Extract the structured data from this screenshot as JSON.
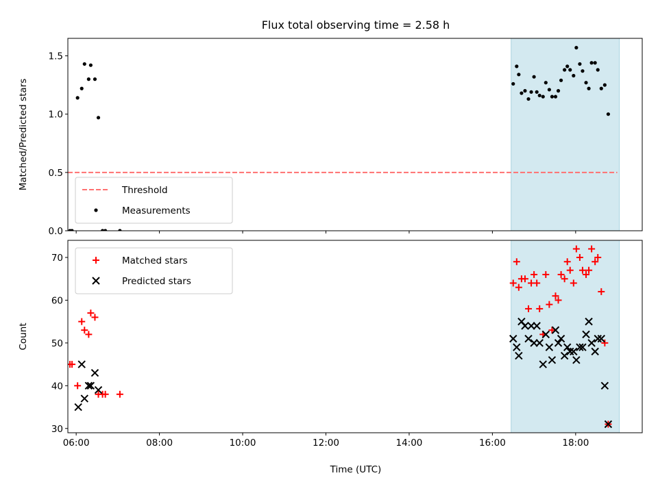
{
  "title": "Flux total observing time = 2.58 h",
  "xlabel": "Time (UTC)",
  "chart_data": [
    {
      "type": "scatter",
      "panel": "top",
      "ylabel": "Matched/Predicted stars",
      "xlim": [
        "05:48",
        "19:36"
      ],
      "ylim": [
        0,
        1.65
      ],
      "yticks": [
        "0.0",
        "0.5",
        "1.0",
        "1.5"
      ],
      "xticks": [
        "06:00",
        "08:00",
        "10:00",
        "12:00",
        "14:00",
        "16:00",
        "18:00"
      ],
      "shaded_region": {
        "x": [
          "16:27",
          "19:03"
        ],
        "color": "#d3e9f0"
      },
      "legend_position": "lower-left",
      "series": [
        {
          "name": "Threshold",
          "style": "dashed-line",
          "color": "#ff7070",
          "points": [
            [
              "05:48",
              0.5
            ],
            [
              "19:00",
              0.5
            ]
          ]
        },
        {
          "name": "Measurements",
          "style": "dot",
          "color": "#000000",
          "points": [
            [
              "05:51",
              0.0
            ],
            [
              "05:54",
              0.0
            ],
            [
              "06:02",
              1.14
            ],
            [
              "06:08",
              1.22
            ],
            [
              "06:12",
              1.43
            ],
            [
              "06:18",
              1.3
            ],
            [
              "06:21",
              1.42
            ],
            [
              "06:27",
              1.3
            ],
            [
              "06:32",
              0.97
            ],
            [
              "06:38",
              0.0
            ],
            [
              "06:42",
              0.0
            ],
            [
              "07:03",
              0.0
            ],
            [
              "16:30",
              1.26
            ],
            [
              "16:35",
              1.41
            ],
            [
              "16:38",
              1.34
            ],
            [
              "16:42",
              1.18
            ],
            [
              "16:47",
              1.2
            ],
            [
              "16:52",
              1.13
            ],
            [
              "16:56",
              1.19
            ],
            [
              "17:00",
              1.32
            ],
            [
              "17:04",
              1.19
            ],
            [
              "17:08",
              1.16
            ],
            [
              "17:13",
              1.15
            ],
            [
              "17:17",
              1.27
            ],
            [
              "17:22",
              1.21
            ],
            [
              "17:26",
              1.15
            ],
            [
              "17:31",
              1.15
            ],
            [
              "17:35",
              1.2
            ],
            [
              "17:39",
              1.29
            ],
            [
              "17:44",
              1.38
            ],
            [
              "17:48",
              1.41
            ],
            [
              "17:52",
              1.38
            ],
            [
              "17:57",
              1.33
            ],
            [
              "18:01",
              1.57
            ],
            [
              "18:06",
              1.43
            ],
            [
              "18:10",
              1.37
            ],
            [
              "18:15",
              1.27
            ],
            [
              "18:19",
              1.22
            ],
            [
              "18:23",
              1.44
            ],
            [
              "18:28",
              1.44
            ],
            [
              "18:32",
              1.38
            ],
            [
              "18:37",
              1.22
            ],
            [
              "18:42",
              1.25
            ],
            [
              "18:47",
              1.0
            ]
          ]
        }
      ]
    },
    {
      "type": "scatter",
      "panel": "bottom",
      "ylabel": "Count",
      "xlim": [
        "05:48",
        "19:36"
      ],
      "ylim": [
        29,
        74
      ],
      "yticks": [
        "30",
        "40",
        "50",
        "60",
        "70"
      ],
      "xticks": [
        "06:00",
        "08:00",
        "10:00",
        "12:00",
        "14:00",
        "16:00",
        "18:00"
      ],
      "shaded_region": {
        "x": [
          "16:27",
          "19:03"
        ],
        "color": "#d3e9f0"
      },
      "legend_position": "upper-left",
      "series": [
        {
          "name": "Matched stars",
          "marker": "plus",
          "color": "#ff0000",
          "points": [
            [
              "05:51",
              45
            ],
            [
              "05:54",
              45
            ],
            [
              "06:02",
              40
            ],
            [
              "06:08",
              55
            ],
            [
              "06:12",
              53
            ],
            [
              "06:18",
              52
            ],
            [
              "06:21",
              57
            ],
            [
              "06:27",
              56
            ],
            [
              "06:32",
              38
            ],
            [
              "06:38",
              38
            ],
            [
              "06:42",
              38
            ],
            [
              "07:03",
              38
            ],
            [
              "16:30",
              64
            ],
            [
              "16:35",
              69
            ],
            [
              "16:38",
              63
            ],
            [
              "16:42",
              65
            ],
            [
              "16:47",
              65
            ],
            [
              "16:52",
              58
            ],
            [
              "16:56",
              64
            ],
            [
              "17:00",
              66
            ],
            [
              "17:04",
              64
            ],
            [
              "17:08",
              58
            ],
            [
              "17:13",
              52
            ],
            [
              "17:17",
              66
            ],
            [
              "17:22",
              59
            ],
            [
              "17:26",
              53
            ],
            [
              "17:31",
              61
            ],
            [
              "17:35",
              60
            ],
            [
              "17:39",
              66
            ],
            [
              "17:44",
              65
            ],
            [
              "17:48",
              69
            ],
            [
              "17:52",
              67
            ],
            [
              "17:57",
              64
            ],
            [
              "18:01",
              72
            ],
            [
              "18:06",
              70
            ],
            [
              "18:10",
              67
            ],
            [
              "18:15",
              66
            ],
            [
              "18:19",
              67
            ],
            [
              "18:23",
              72
            ],
            [
              "18:28",
              69
            ],
            [
              "18:32",
              70
            ],
            [
              "18:37",
              62
            ],
            [
              "18:42",
              50
            ],
            [
              "18:47",
              31
            ]
          ]
        },
        {
          "name": "Predicted stars",
          "marker": "x",
          "color": "#000000",
          "points": [
            [
              "06:03",
              35
            ],
            [
              "06:08",
              45
            ],
            [
              "06:12",
              37
            ],
            [
              "06:18",
              40
            ],
            [
              "06:21",
              40
            ],
            [
              "06:27",
              43
            ],
            [
              "06:32",
              39
            ],
            [
              "16:30",
              51
            ],
            [
              "16:35",
              49
            ],
            [
              "16:38",
              47
            ],
            [
              "16:42",
              55
            ],
            [
              "16:47",
              54
            ],
            [
              "16:52",
              51
            ],
            [
              "16:56",
              54
            ],
            [
              "17:00",
              50
            ],
            [
              "17:04",
              54
            ],
            [
              "17:08",
              50
            ],
            [
              "17:13",
              45
            ],
            [
              "17:17",
              52
            ],
            [
              "17:22",
              49
            ],
            [
              "17:26",
              46
            ],
            [
              "17:31",
              53
            ],
            [
              "17:35",
              50
            ],
            [
              "17:39",
              51
            ],
            [
              "17:44",
              47
            ],
            [
              "17:48",
              49
            ],
            [
              "17:52",
              48
            ],
            [
              "17:57",
              48
            ],
            [
              "18:01",
              46
            ],
            [
              "18:06",
              49
            ],
            [
              "18:10",
              49
            ],
            [
              "18:15",
              52
            ],
            [
              "18:19",
              55
            ],
            [
              "18:23",
              50
            ],
            [
              "18:28",
              48
            ],
            [
              "18:32",
              51
            ],
            [
              "18:37",
              51
            ],
            [
              "18:42",
              40
            ],
            [
              "18:47",
              31
            ]
          ]
        }
      ]
    }
  ]
}
